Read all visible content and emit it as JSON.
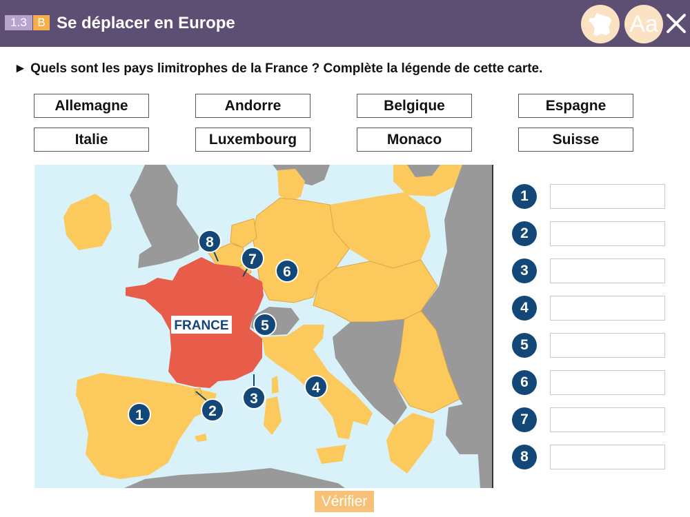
{
  "header": {
    "section_number": "1.3",
    "section_letter": "B",
    "title": "Se déplacer en Europe",
    "map_button_icon": "france-map-icon",
    "font_button_label": "Aa",
    "close_icon": "close-icon"
  },
  "question": "► Quels sont les pays limitrophes de la France ? Complète la légende de cette carte.",
  "word_bank": [
    "Allemagne",
    "Andorre",
    "Belgique",
    "Espagne",
    "Italie",
    "Luxembourg",
    "Monaco",
    "Suisse"
  ],
  "map": {
    "france_label": "FRANCE",
    "markers": [
      "1",
      "2",
      "3",
      "4",
      "5",
      "6",
      "7",
      "8"
    ],
    "colors": {
      "sea": "#d9f2fa",
      "france": "#e85c4a",
      "neighbors": "#fbc95c",
      "other": "#999999",
      "marker": "#124778"
    }
  },
  "legend": {
    "numbers": [
      "1",
      "2",
      "3",
      "4",
      "5",
      "6",
      "7",
      "8"
    ],
    "values": [
      "",
      "",
      "",
      "",
      "",
      "",
      "",
      ""
    ]
  },
  "verify_button": "Vérifier"
}
